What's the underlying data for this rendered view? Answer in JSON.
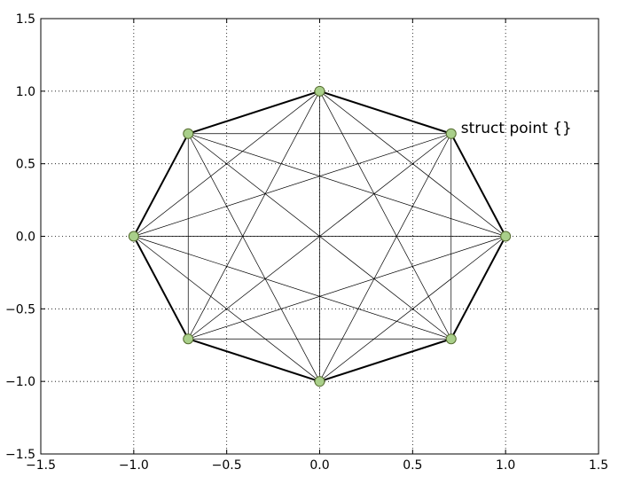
{
  "chart_data": {
    "type": "scatter",
    "title": "",
    "xlabel": "",
    "ylabel": "",
    "xlim": [
      -1.5,
      1.5
    ],
    "ylim": [
      -1.5,
      1.5
    ],
    "grid": true,
    "x_ticks": [
      "−1.5",
      "−1.0",
      "−0.5",
      "0.0",
      "0.5",
      "1.0",
      "1.5"
    ],
    "x_tick_values": [
      -1.5,
      -1.0,
      -0.5,
      0.0,
      0.5,
      1.0,
      1.5
    ],
    "y_ticks": [
      "−1.5",
      "−1.0",
      "−0.5",
      "0.0",
      "0.5",
      "1.0",
      "1.5"
    ],
    "y_tick_values": [
      -1.5,
      -1.0,
      -0.5,
      0.0,
      0.5,
      1.0,
      1.5
    ],
    "points": [
      {
        "x": 1.0,
        "y": 0.0
      },
      {
        "x": 0.7071,
        "y": 0.7071
      },
      {
        "x": 0.0,
        "y": 1.0
      },
      {
        "x": -0.7071,
        "y": 0.7071
      },
      {
        "x": -1.0,
        "y": 0.0
      },
      {
        "x": -0.7071,
        "y": -0.7071
      },
      {
        "x": 0.0,
        "y": -1.0
      },
      {
        "x": 0.7071,
        "y": -0.7071
      }
    ],
    "outline": "regular octagon connecting all points in order",
    "diagonals": "all chords between every pair of points",
    "annotations": [
      {
        "text": "struct point {}",
        "x": 0.75,
        "y": 0.75
      }
    ],
    "colors": {
      "marker_fill": "#a9cf8a",
      "marker_edge": "#556b2f",
      "outline": "#000000",
      "chords": "#000000",
      "grid": "#000000"
    }
  }
}
